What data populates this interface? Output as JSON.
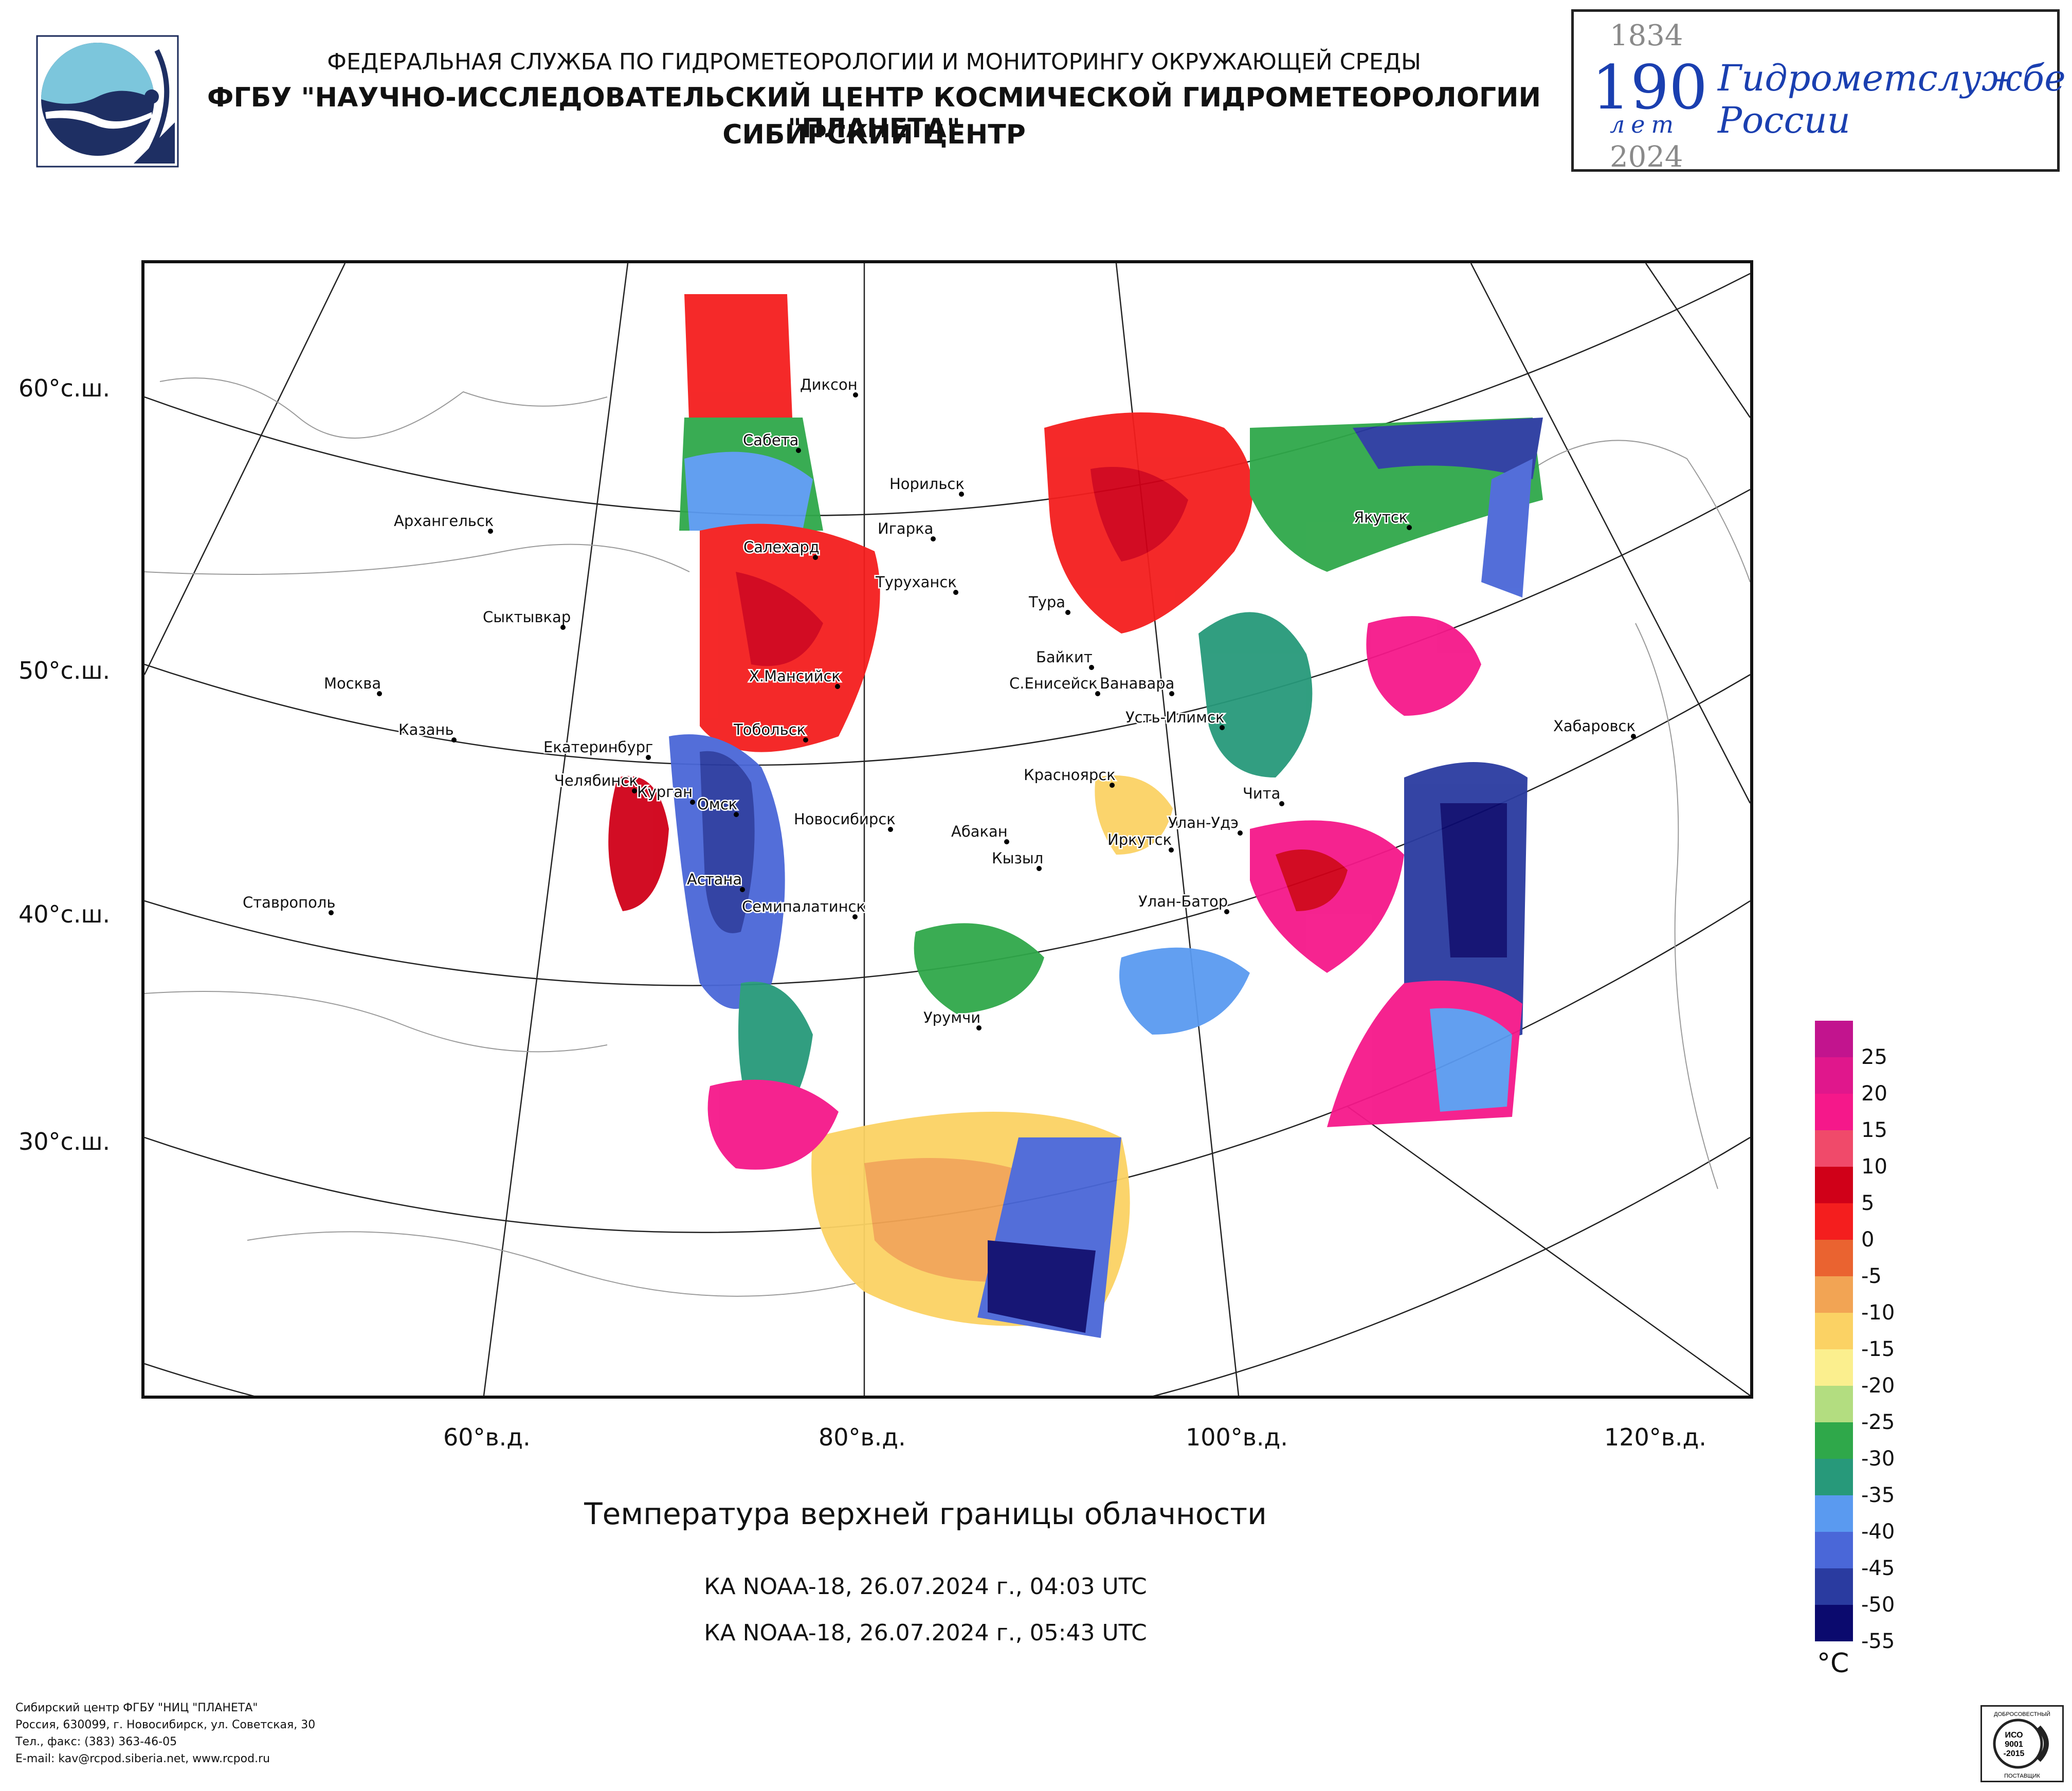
{
  "header": {
    "line1": "ФЕДЕРАЛЬНАЯ СЛУЖБА ПО ГИДРОМЕТЕОРОЛОГИИ И МОНИТОРИНГУ ОКРУЖАЮЩЕЙ СРЕДЫ",
    "line2": "ФГБУ \"НАУЧНО-ИССЛЕДОВАТЕЛЬСКИЙ ЦЕНТР КОСМИЧЕСКОЙ ГИДРОМЕТЕОРОЛОГИИ \"ПЛАНЕТА\"",
    "line3": "СИБИРСКИЙ ЦЕНТР"
  },
  "anniversary": {
    "year_start": "1834",
    "number": "190",
    "word": "лет",
    "year_end": "2024",
    "org_line1": "Гидрометслужбе",
    "org_line2": "России"
  },
  "map": {
    "lat_labels": [
      "60°с.ш.",
      "50°с.ш.",
      "40°с.ш.",
      "30°с.ш."
    ],
    "lon_labels": [
      "60°в.д.",
      "80°в.д.",
      "100°в.д.",
      "120°в.д."
    ],
    "cities": [
      "Диксон",
      "Сабета",
      "Норильск",
      "Архангельск",
      "Салехард",
      "Игарка",
      "Туруханск",
      "Якутск",
      "Тура",
      "Сыктывкар",
      "Байкит",
      "Ванавара",
      "Х.Мансийск",
      "С.Енисейск",
      "Москва",
      "Усть-Илимск",
      "Казань",
      "Тобольск",
      "Екатеринбург",
      "Хабаровск",
      "Челябинск",
      "Курган",
      "Красноярск",
      "Чита",
      "Омск",
      "Новосибирск",
      "Улан-Удэ",
      "Абакан",
      "Иркутск",
      "Кызыл",
      "Астана",
      "Ставрополь",
      "Семипалатинск",
      "Улан-Батор",
      "Урумчи"
    ]
  },
  "caption": "Температура верхней границы облачности",
  "passes": [
    "КА NOAA-18, 26.07.2024 г., 04:03 UTC",
    "КА NOAA-18, 26.07.2024 г., 05:43 UTC"
  ],
  "legend": {
    "unit": "°C",
    "labels": [
      "25",
      "20",
      "15",
      "10",
      "5",
      "0",
      "-5",
      "-10",
      "-15",
      "-20",
      "-25",
      "-30",
      "-35",
      "-40",
      "-45",
      "-50",
      "-55"
    ],
    "colors": [
      "#c2148e",
      "#e0178c",
      "#f5188a",
      "#f04a6a",
      "#d00018",
      "#f41e1e",
      "#ea6330",
      "#f2a454",
      "#fbd264",
      "#fbef8e",
      "#b3dd80",
      "#2fa84a",
      "#27997a",
      "#5a9af0",
      "#4a67d8",
      "#2a3ba0",
      "#0b0a6e"
    ]
  },
  "footer": [
    "Сибирский центр ФГБУ \"НИЦ \"ПЛАНЕТА\"",
    "Россия, 630099, г. Новосибирск, ул. Советская, 30",
    "Тел., факс: (383) 363-46-05",
    "E-mail: kav@rcpod.siberia.net, www.rcpod.ru"
  ],
  "iso_badge": {
    "top": "ДОБРОСОВЕСТНЫЙ",
    "mid1": "ИСО",
    "mid2": "9001",
    "mid3": "-2015",
    "bottom": "ПОСТАВЩИК"
  }
}
